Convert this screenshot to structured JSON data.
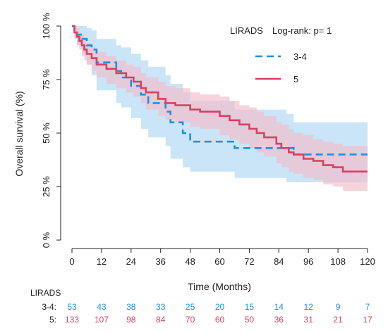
{
  "chart_data": {
    "type": "line",
    "subtype": "kaplan-meier",
    "title": "",
    "xlabel": "Time (Months)",
    "ylabel": "Overall survival (%)",
    "xlim": [
      0,
      120
    ],
    "ylim": [
      0,
      1
    ],
    "x_ticks": [
      0,
      12,
      24,
      36,
      48,
      60,
      72,
      84,
      96,
      108,
      120
    ],
    "x_tick_labels": [
      "0",
      "12",
      "24",
      "36",
      "48",
      "60",
      "72",
      "84",
      "96",
      "108",
      "120"
    ],
    "y_ticks": [
      0,
      0.25,
      0.5,
      0.75,
      1
    ],
    "y_tick_labels": [
      "0 %",
      "25 %",
      "50 %",
      "75 %",
      "100 %"
    ],
    "grid": false,
    "legend": {
      "title": "LIRADS",
      "stat_text": "Log-rank: p= 1",
      "placement": "top-right"
    },
    "series": [
      {
        "name": "3-4",
        "color": "#1f8fe0",
        "ci_color": "#b8dcf6",
        "line_style": "dashed",
        "x": [
          0,
          1,
          2,
          4,
          6,
          8,
          10,
          18,
          20,
          24,
          28,
          31,
          38,
          40,
          45,
          48,
          66,
          87,
          90,
          120
        ],
        "y": [
          1.0,
          0.98,
          0.96,
          0.94,
          0.91,
          0.89,
          0.83,
          0.79,
          0.76,
          0.72,
          0.68,
          0.64,
          0.6,
          0.55,
          0.5,
          0.46,
          0.43,
          0.43,
          0.4,
          0.4
        ],
        "ci_lower": [
          1.0,
          0.95,
          0.91,
          0.86,
          0.82,
          0.77,
          0.7,
          0.64,
          0.62,
          0.57,
          0.52,
          0.48,
          0.44,
          0.38,
          0.34,
          0.32,
          0.29,
          0.27,
          0.27,
          0.27
        ],
        "ci_upper": [
          1.0,
          1.0,
          1.0,
          1.0,
          0.99,
          0.98,
          0.94,
          0.91,
          0.9,
          0.87,
          0.84,
          0.81,
          0.77,
          0.73,
          0.69,
          0.65,
          0.61,
          0.59,
          0.55,
          0.55
        ]
      },
      {
        "name": "5",
        "color": "#d9405f",
        "ci_color": "#f2bcc8",
        "line_style": "solid",
        "x": [
          0,
          1,
          2,
          3,
          4,
          5,
          6,
          8,
          10,
          14,
          18,
          22,
          25,
          28,
          30,
          35,
          38,
          42,
          48,
          52,
          60,
          64,
          68,
          72,
          75,
          78,
          83,
          85,
          88,
          90,
          94,
          98,
          102,
          106,
          110,
          120
        ],
        "y": [
          1.0,
          0.97,
          0.95,
          0.93,
          0.91,
          0.89,
          0.87,
          0.85,
          0.82,
          0.8,
          0.78,
          0.76,
          0.74,
          0.71,
          0.69,
          0.66,
          0.64,
          0.63,
          0.61,
          0.6,
          0.58,
          0.56,
          0.54,
          0.52,
          0.5,
          0.48,
          0.45,
          0.43,
          0.41,
          0.4,
          0.38,
          0.37,
          0.35,
          0.34,
          0.32,
          0.32
        ],
        "ci_lower": [
          1.0,
          0.94,
          0.91,
          0.89,
          0.87,
          0.84,
          0.82,
          0.79,
          0.76,
          0.73,
          0.71,
          0.69,
          0.67,
          0.64,
          0.61,
          0.58,
          0.56,
          0.55,
          0.53,
          0.52,
          0.49,
          0.47,
          0.45,
          0.43,
          0.41,
          0.39,
          0.36,
          0.34,
          0.32,
          0.31,
          0.29,
          0.28,
          0.26,
          0.25,
          0.23,
          0.23
        ],
        "ci_upper": [
          1.0,
          1.0,
          0.99,
          0.97,
          0.96,
          0.94,
          0.92,
          0.9,
          0.88,
          0.86,
          0.84,
          0.82,
          0.81,
          0.78,
          0.76,
          0.74,
          0.72,
          0.71,
          0.69,
          0.68,
          0.67,
          0.65,
          0.63,
          0.62,
          0.6,
          0.58,
          0.55,
          0.54,
          0.52,
          0.5,
          0.49,
          0.47,
          0.46,
          0.45,
          0.44,
          0.44
        ]
      }
    ]
  },
  "risk_table": {
    "title": "LIRADS",
    "rows": [
      {
        "label": "3-4:",
        "color": "#1f8fe0",
        "values": [
          "53",
          "43",
          "38",
          "33",
          "25",
          "20",
          "15",
          "14",
          "12",
          "9",
          "7"
        ]
      },
      {
        "label": "5:",
        "color": "#d9405f",
        "values": [
          "133",
          "107",
          "98",
          "84",
          "70",
          "60",
          "50",
          "36",
          "31",
          "21",
          "17"
        ]
      }
    ]
  }
}
